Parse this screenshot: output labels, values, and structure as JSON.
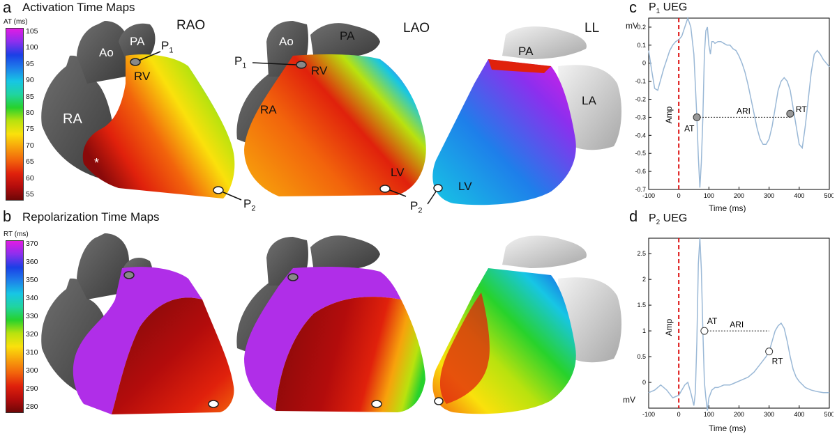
{
  "panel_a": {
    "letter": "a",
    "title": "Activation Time Maps",
    "colorbar": {
      "label": "AT (ms)",
      "ticks": [
        "105",
        "100",
        "95",
        "90",
        "85",
        "80",
        "75",
        "70",
        "65",
        "60",
        "55"
      ],
      "colors": [
        "#e21be3",
        "#8c2fee",
        "#1b3fe6",
        "#1e7fea",
        "#17c6e4",
        "#20d4a0",
        "#27d22c",
        "#b9e20e",
        "#fae10c",
        "#f7a20c",
        "#f2640c",
        "#e0210c",
        "#b30c0c",
        "#6e0707"
      ]
    },
    "views": {
      "rao": {
        "name": "RAO",
        "labels": {
          "ra": "RA",
          "ao": "Ao",
          "pa": "PA",
          "rv": "RV",
          "p1": "P",
          "p1_sub": "1",
          "p2": "P",
          "p2_sub": "2",
          "star": "*"
        }
      },
      "lao": {
        "name": "LAO",
        "labels": {
          "ra": "RA",
          "ao": "Ao",
          "pa": "PA",
          "rv": "RV",
          "lv": "LV",
          "p1": "P",
          "p1_sub": "1",
          "p2": "P",
          "p2_sub": "2"
        }
      },
      "ll": {
        "name": "LL",
        "labels": {
          "pa": "PA",
          "la": "LA",
          "lv": "LV"
        }
      }
    }
  },
  "panel_b": {
    "letter": "b",
    "title": "Repolarization Time Maps",
    "colorbar": {
      "label": "RT (ms)",
      "ticks": [
        "370",
        "360",
        "350",
        "340",
        "330",
        "320",
        "310",
        "300",
        "290",
        "280"
      ],
      "colors": [
        "#e21be3",
        "#8c2fee",
        "#1b3fe6",
        "#1e7fea",
        "#17c6e4",
        "#20d4a0",
        "#27d22c",
        "#b9e20e",
        "#fae10c",
        "#f7a20c",
        "#f2640c",
        "#e0210c",
        "#b30c0c",
        "#6e0707"
      ]
    }
  },
  "panel_c": {
    "letter": "c",
    "title": "P",
    "title_sub": "1",
    "title_rest": " UEG",
    "ylabel": "mV",
    "xlabel": "Time (ms)",
    "x_ticks": [
      "-100",
      "0",
      "100",
      "200",
      "300",
      "400",
      "500"
    ],
    "y_ticks": [
      "0.2",
      "0.1",
      "0",
      "-0.1",
      "-0.2",
      "-0.3",
      "-0.4",
      "-0.5",
      "-0.6",
      "-0.7"
    ],
    "annotations": {
      "amp": "Amp",
      "at": "AT",
      "ari": "ARI",
      "rt": "RT"
    }
  },
  "panel_d": {
    "letter": "d",
    "title": "P",
    "title_sub": "2",
    "title_rest": " UEG",
    "ylabel": "mV",
    "xlabel": "Time (ms)",
    "x_ticks": [
      "-100",
      "0",
      "100",
      "200",
      "300",
      "400",
      "500"
    ],
    "y_ticks": [
      "2.5",
      "2",
      "1.5",
      "1",
      "0.5",
      "0"
    ],
    "annotations": {
      "amp": "Amp",
      "at": "AT",
      "ari": "ARI",
      "rt": "RT"
    }
  },
  "chart_data": [
    {
      "type": "line",
      "title": "P1 UEG",
      "xlabel": "Time (ms)",
      "ylabel": "mV",
      "xlim": [
        -100,
        500
      ],
      "ylim": [
        -0.7,
        0.25
      ],
      "series": [
        {
          "color": "#9ab8d6",
          "x": [
            -100,
            -90,
            -80,
            -70,
            -60,
            -50,
            -40,
            -30,
            -20,
            -10,
            0,
            10,
            20,
            30,
            40,
            50,
            55,
            60,
            65,
            70,
            75,
            80,
            85,
            90,
            95,
            100,
            105,
            110,
            115,
            120,
            130,
            140,
            150,
            160,
            170,
            180,
            190,
            200,
            210,
            220,
            230,
            240,
            250,
            260,
            270,
            280,
            290,
            300,
            310,
            320,
            330,
            340,
            350,
            360,
            370,
            380,
            390,
            400,
            410,
            420,
            430,
            440,
            450,
            460,
            470,
            480,
            490,
            500
          ],
          "y": [
            0.07,
            -0.04,
            -0.14,
            -0.15,
            -0.09,
            -0.03,
            0.02,
            0.07,
            0.1,
            0.12,
            0.13,
            0.15,
            0.2,
            0.25,
            0.2,
            0.05,
            -0.12,
            -0.3,
            -0.52,
            -0.69,
            -0.55,
            -0.3,
            0.05,
            0.18,
            0.2,
            0.1,
            0.05,
            0.12,
            0.12,
            0.11,
            0.12,
            0.12,
            0.11,
            0.1,
            0.1,
            0.08,
            0.07,
            0.04,
            0.0,
            -0.05,
            -0.12,
            -0.2,
            -0.28,
            -0.36,
            -0.42,
            -0.45,
            -0.45,
            -0.42,
            -0.35,
            -0.25,
            -0.15,
            -0.1,
            -0.08,
            -0.1,
            -0.15,
            -0.25,
            -0.35,
            -0.45,
            -0.47,
            -0.35,
            -0.2,
            -0.05,
            0.05,
            0.07,
            0.05,
            0.02,
            0.0,
            -0.02
          ]
        }
      ],
      "markers": {
        "amp_time": 0,
        "at": {
          "x": 60,
          "y": -0.3
        },
        "rt": {
          "x": 370,
          "y": -0.28
        }
      }
    },
    {
      "type": "line",
      "title": "P2 UEG",
      "xlabel": "Time (ms)",
      "ylabel": "mV",
      "xlim": [
        -100,
        500
      ],
      "ylim": [
        -0.5,
        2.8
      ],
      "series": [
        {
          "color": "#9ab8d6",
          "x": [
            -100,
            -80,
            -60,
            -40,
            -20,
            0,
            10,
            20,
            30,
            40,
            50,
            55,
            60,
            65,
            70,
            75,
            80,
            85,
            90,
            95,
            100,
            110,
            120,
            130,
            150,
            170,
            190,
            210,
            230,
            250,
            270,
            290,
            300,
            310,
            320,
            330,
            340,
            350,
            360,
            370,
            380,
            390,
            400,
            420,
            440,
            460,
            480,
            500
          ],
          "y": [
            -0.2,
            -0.15,
            -0.05,
            -0.15,
            -0.3,
            -0.25,
            -0.15,
            -0.05,
            0.0,
            -0.2,
            -0.45,
            -0.2,
            0.8,
            2.3,
            2.8,
            2.2,
            1.0,
            0.0,
            -0.3,
            -0.55,
            -0.3,
            -0.15,
            -0.1,
            -0.1,
            -0.05,
            -0.05,
            0.0,
            0.05,
            0.1,
            0.2,
            0.35,
            0.5,
            0.6,
            0.8,
            1.0,
            1.1,
            1.15,
            1.05,
            0.8,
            0.5,
            0.25,
            0.1,
            0.02,
            -0.1,
            -0.15,
            -0.18,
            -0.2,
            -0.2
          ]
        }
      ],
      "markers": {
        "amp_time": 0,
        "at": {
          "x": 85,
          "y": 1.0
        },
        "rt": {
          "x": 300,
          "y": 0.6
        }
      }
    }
  ]
}
